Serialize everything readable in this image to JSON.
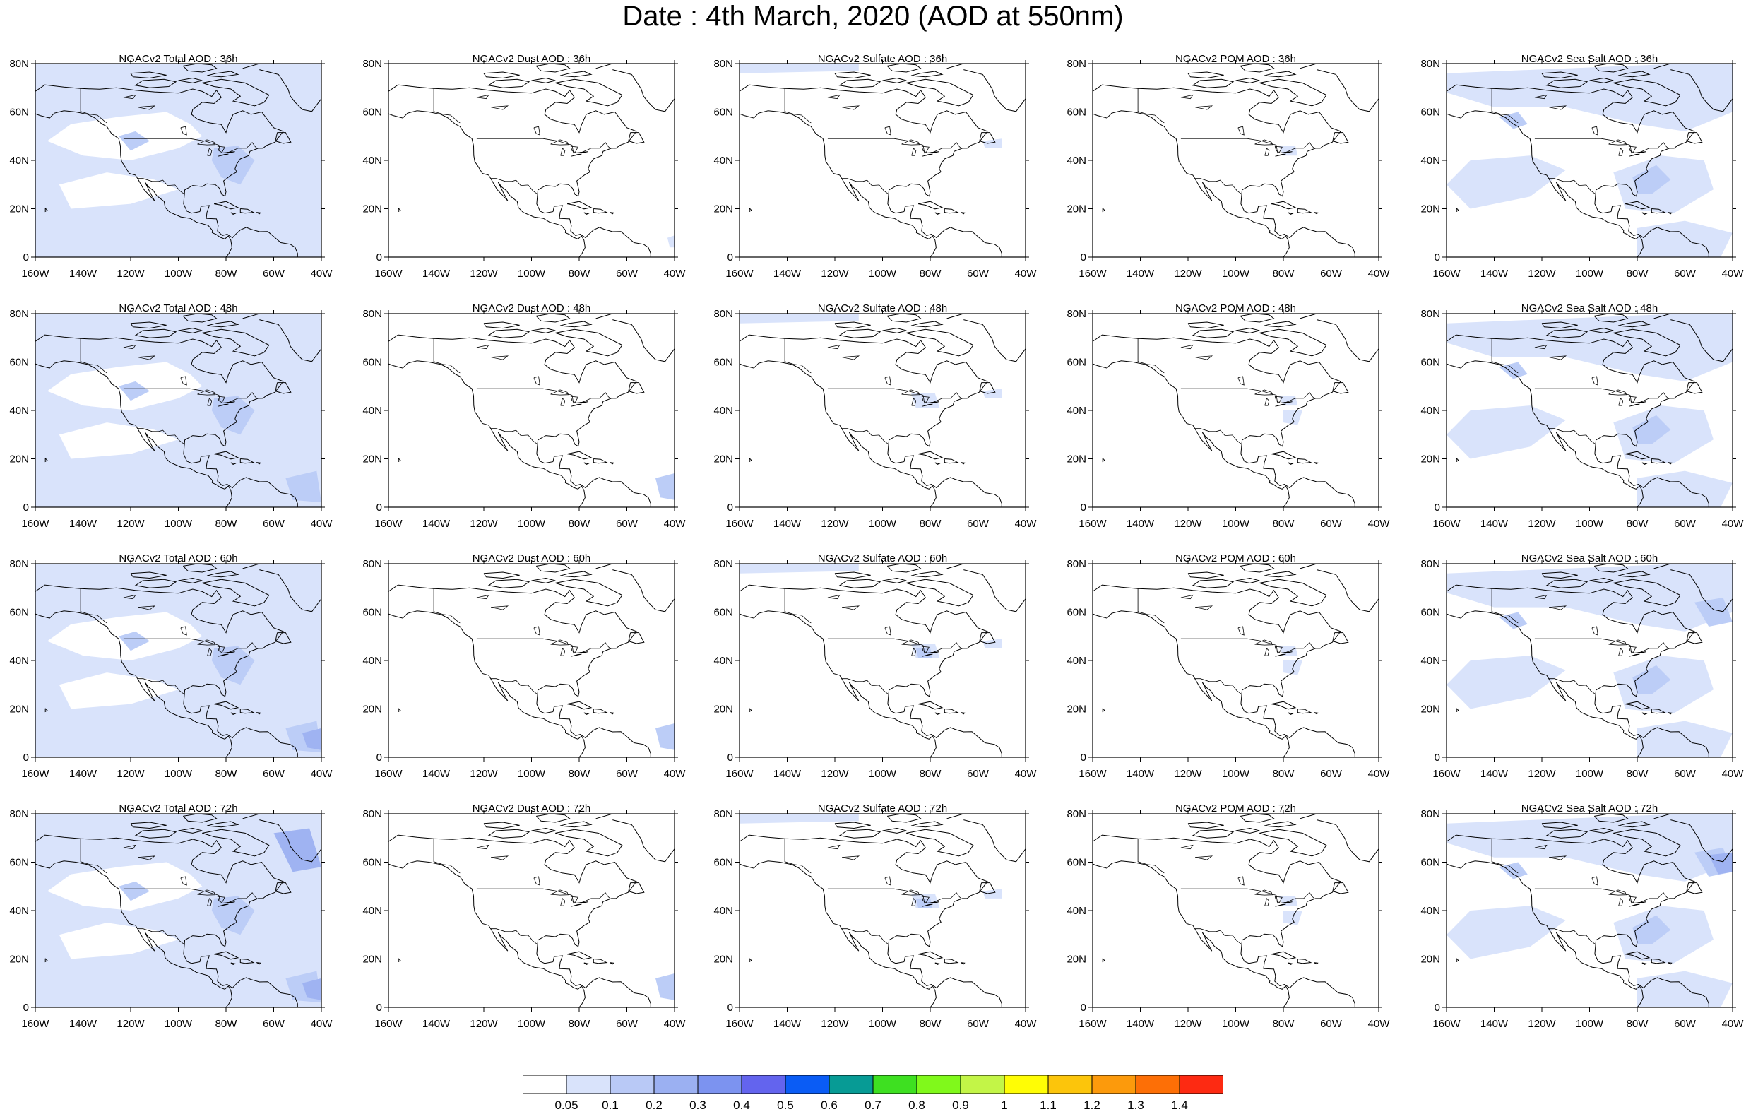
{
  "title": "Date : 4th March, 2020 (AOD at 550nm)",
  "species": [
    "Total",
    "Dust",
    "Sulfate",
    "POM",
    "Sea Salt"
  ],
  "lead_times": [
    "36h",
    "48h",
    "60h",
    "72h"
  ],
  "panels": [
    {
      "title": "NGACv2 Total AOD : 36h",
      "species": "Total",
      "lead": "36h"
    },
    {
      "title": "NGACv2 Dust AOD : 36h",
      "species": "Dust",
      "lead": "36h"
    },
    {
      "title": "NGACv2 Sulfate AOD : 36h",
      "species": "Sulfate",
      "lead": "36h"
    },
    {
      "title": "NGACv2 POM AOD : 36h",
      "species": "POM",
      "lead": "36h"
    },
    {
      "title": "NGACv2 Sea Salt AOD : 36h",
      "species": "Sea Salt",
      "lead": "36h"
    },
    {
      "title": "NGACv2 Total AOD : 48h",
      "species": "Total",
      "lead": "48h"
    },
    {
      "title": "NGACv2 Dust AOD : 48h",
      "species": "Dust",
      "lead": "48h"
    },
    {
      "title": "NGACv2 Sulfate AOD : 48h",
      "species": "Sulfate",
      "lead": "48h"
    },
    {
      "title": "NGACv2 POM AOD : 48h",
      "species": "POM",
      "lead": "48h"
    },
    {
      "title": "NGACv2 Sea Salt AOD : 48h",
      "species": "Sea Salt",
      "lead": "48h"
    },
    {
      "title": "NGACv2 Total AOD : 60h",
      "species": "Total",
      "lead": "60h"
    },
    {
      "title": "NGACv2 Dust AOD : 60h",
      "species": "Dust",
      "lead": "60h"
    },
    {
      "title": "NGACv2 Sulfate AOD : 60h",
      "species": "Sulfate",
      "lead": "60h"
    },
    {
      "title": "NGACv2 POM AOD : 60h",
      "species": "POM",
      "lead": "60h"
    },
    {
      "title": "NGACv2 Sea Salt AOD : 60h",
      "species": "Sea Salt",
      "lead": "60h"
    },
    {
      "title": "NGACv2 Total AOD : 72h",
      "species": "Total",
      "lead": "72h"
    },
    {
      "title": "NGACv2 Dust AOD : 72h",
      "species": "Dust",
      "lead": "72h"
    },
    {
      "title": "NGACv2 Sulfate AOD : 72h",
      "species": "Sulfate",
      "lead": "72h"
    },
    {
      "title": "NGACv2 POM AOD : 72h",
      "species": "POM",
      "lead": "72h"
    },
    {
      "title": "NGACv2 Sea Salt  AOD : 72h",
      "species": "Sea Salt",
      "lead": "72h"
    }
  ],
  "map": {
    "lon_range": [
      -160,
      -40
    ],
    "lat_range": [
      0,
      80
    ],
    "lon_ticks": [
      "160W",
      "140W",
      "120W",
      "100W",
      "80W",
      "60W",
      "40W"
    ],
    "lat_ticks": [
      "0",
      "20N",
      "40N",
      "60N",
      "80N"
    ],
    "coastline_color": "#000000",
    "shading_color_light": "#d9e3fb",
    "shading_color_mid": "#bccdf7",
    "shading_color_dark": "#9fb3f2"
  },
  "colorbar": {
    "labels": [
      "0.05",
      "0.1",
      "0.2",
      "0.3",
      "0.4",
      "0.5",
      "0.6",
      "0.7",
      "0.8",
      "0.9",
      "1",
      "1.1",
      "1.2",
      "1.3",
      "1.4"
    ],
    "colors": [
      "#ffffff",
      "#d9e3fb",
      "#b9c9f6",
      "#9bb0f2",
      "#7c93f0",
      "#6364ee",
      "#0a5cf5",
      "#079b95",
      "#3ee021",
      "#80f91b",
      "#c3f547",
      "#fffd05",
      "#fcc50b",
      "#fc9a0c",
      "#fd6f06",
      "#fd2a12"
    ]
  }
}
